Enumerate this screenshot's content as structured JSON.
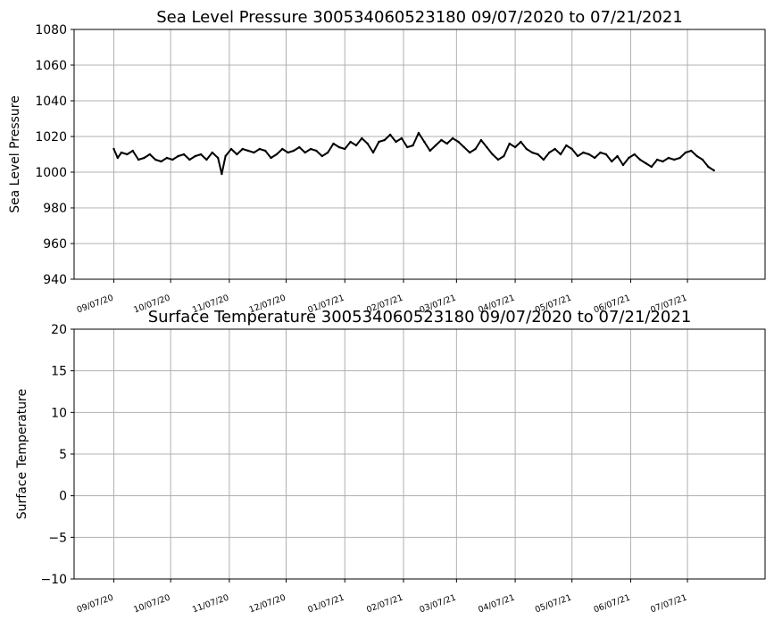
{
  "chart_data": [
    {
      "type": "line",
      "title": "Sea Level Pressure 300534060523180  09/07/2020 to 07/21/2021",
      "xlabel": "",
      "ylabel": "Sea Level Pressure",
      "ylim": [
        940,
        1080
      ],
      "xlim": [
        "2020-08-17",
        "2021-08-17"
      ],
      "yticks": [
        "940",
        "960",
        "980",
        "1000",
        "1020",
        "1040",
        "1060",
        "1080"
      ],
      "xticks": [
        {
          "date": "2020-09-07",
          "label": "09/07/20"
        },
        {
          "date": "2020-10-07",
          "label": "10/07/20"
        },
        {
          "date": "2020-11-07",
          "label": "11/07/20"
        },
        {
          "date": "2020-12-07",
          "label": "12/07/20"
        },
        {
          "date": "2021-01-07",
          "label": "01/07/21"
        },
        {
          "date": "2021-02-07",
          "label": "02/07/21"
        },
        {
          "date": "2021-03-07",
          "label": "03/07/21"
        },
        {
          "date": "2021-04-07",
          "label": "04/07/21"
        },
        {
          "date": "2021-05-07",
          "label": "05/07/21"
        },
        {
          "date": "2021-06-07",
          "label": "06/07/21"
        },
        {
          "date": "2021-07-07",
          "label": "07/07/21"
        }
      ],
      "grid": true,
      "color": "#000000",
      "series": [
        {
          "x": [
            "2020-09-07",
            "2020-09-09",
            "2020-09-11",
            "2020-09-14",
            "2020-09-17",
            "2020-09-20",
            "2020-09-23",
            "2020-09-26",
            "2020-09-29",
            "2020-10-02",
            "2020-10-05",
            "2020-10-08",
            "2020-10-11",
            "2020-10-14",
            "2020-10-17",
            "2020-10-20",
            "2020-10-23",
            "2020-10-26",
            "2020-10-29",
            "2020-11-01",
            "2020-11-03",
            "2020-11-05",
            "2020-11-08",
            "2020-11-11",
            "2020-11-14",
            "2020-11-17",
            "2020-11-20",
            "2020-11-23",
            "2020-11-26",
            "2020-11-29",
            "2020-12-02",
            "2020-12-05",
            "2020-12-08",
            "2020-12-11",
            "2020-12-14",
            "2020-12-17",
            "2020-12-20",
            "2020-12-23",
            "2020-12-26",
            "2020-12-29",
            "2021-01-01",
            "2021-01-04",
            "2021-01-07",
            "2021-01-10",
            "2021-01-13",
            "2021-01-16",
            "2021-01-19",
            "2021-01-22",
            "2021-01-25",
            "2021-01-28",
            "2021-01-31",
            "2021-02-03",
            "2021-02-06",
            "2021-02-09",
            "2021-02-12",
            "2021-02-15",
            "2021-02-18",
            "2021-02-21",
            "2021-02-24",
            "2021-02-27",
            "2021-03-02",
            "2021-03-05",
            "2021-03-08",
            "2021-03-11",
            "2021-03-14",
            "2021-03-17",
            "2021-03-20",
            "2021-03-23",
            "2021-03-26",
            "2021-03-29",
            "2021-04-01",
            "2021-04-04",
            "2021-04-07",
            "2021-04-10",
            "2021-04-13",
            "2021-04-16",
            "2021-04-19",
            "2021-04-22",
            "2021-04-25",
            "2021-04-28",
            "2021-05-01",
            "2021-05-04",
            "2021-05-07",
            "2021-05-10",
            "2021-05-13",
            "2021-05-16",
            "2021-05-19",
            "2021-05-22",
            "2021-05-25",
            "2021-05-28",
            "2021-05-31",
            "2021-06-03",
            "2021-06-06",
            "2021-06-09",
            "2021-06-12",
            "2021-06-15",
            "2021-06-18",
            "2021-06-21",
            "2021-06-24",
            "2021-06-27",
            "2021-06-30",
            "2021-07-03",
            "2021-07-06",
            "2021-07-09",
            "2021-07-12",
            "2021-07-15",
            "2021-07-18",
            "2021-07-21"
          ],
          "y": [
            1013,
            1008,
            1011,
            1010,
            1012,
            1007,
            1008,
            1010,
            1007,
            1006,
            1008,
            1007,
            1009,
            1010,
            1007,
            1009,
            1010,
            1007,
            1011,
            1008,
            999,
            1009,
            1013,
            1010,
            1013,
            1012,
            1011,
            1013,
            1012,
            1008,
            1010,
            1013,
            1011,
            1012,
            1014,
            1011,
            1013,
            1012,
            1009,
            1011,
            1016,
            1014,
            1013,
            1017,
            1015,
            1019,
            1016,
            1011,
            1017,
            1018,
            1021,
            1017,
            1019,
            1014,
            1015,
            1022,
            1017,
            1012,
            1015,
            1018,
            1016,
            1019,
            1017,
            1014,
            1011,
            1013,
            1018,
            1014,
            1010,
            1007,
            1009,
            1016,
            1014,
            1017,
            1013,
            1011,
            1010,
            1007,
            1011,
            1013,
            1010,
            1015,
            1013,
            1009,
            1011,
            1010,
            1008,
            1011,
            1010,
            1006,
            1009,
            1004,
            1008,
            1010,
            1007,
            1005,
            1003,
            1007,
            1006,
            1008,
            1007,
            1008,
            1011,
            1012,
            1009,
            1007,
            1003,
            1001
          ]
        }
      ]
    },
    {
      "type": "line",
      "title": "Surface Temperature 300534060523180  09/07/2020 to 07/21/2021",
      "xlabel": "",
      "ylabel": "Surface Temperature",
      "ylim": [
        -10,
        20
      ],
      "xlim": [
        "2020-08-17",
        "2021-08-17"
      ],
      "yticks": [
        "−10",
        "−5",
        "0",
        "5",
        "10",
        "15",
        "20"
      ],
      "xticks": [
        {
          "date": "2020-09-07",
          "label": "09/07/20"
        },
        {
          "date": "2020-10-07",
          "label": "10/07/20"
        },
        {
          "date": "2020-11-07",
          "label": "11/07/20"
        },
        {
          "date": "2020-12-07",
          "label": "12/07/20"
        },
        {
          "date": "2021-01-07",
          "label": "01/07/21"
        },
        {
          "date": "2021-02-07",
          "label": "02/07/21"
        },
        {
          "date": "2021-03-07",
          "label": "03/07/21"
        },
        {
          "date": "2021-04-07",
          "label": "04/07/21"
        },
        {
          "date": "2021-05-07",
          "label": "05/07/21"
        },
        {
          "date": "2021-06-07",
          "label": "06/07/21"
        },
        {
          "date": "2021-07-07",
          "label": "07/07/21"
        }
      ],
      "grid": true,
      "color": "#000000",
      "series": []
    }
  ]
}
